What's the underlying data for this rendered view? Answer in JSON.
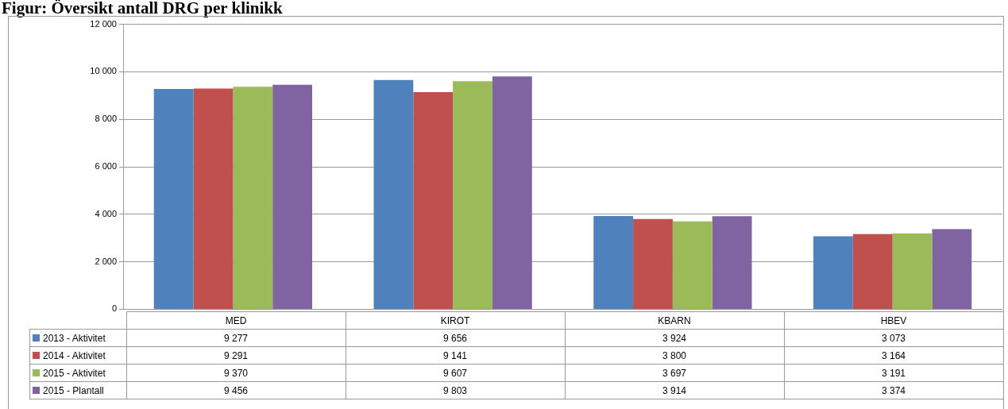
{
  "chart_data": {
    "type": "bar",
    "title": "Figur: Översikt antall DRG per klinikk",
    "categories": [
      "MED",
      "KIROT",
      "KBARN",
      "HBEV"
    ],
    "series": [
      {
        "name": "2013 - Aktivitet",
        "color": "#4f81bd",
        "values": [
          9277,
          9656,
          3924,
          3073
        ],
        "value_labels": [
          "9 277",
          "9 656",
          "3 924",
          "3 073"
        ]
      },
      {
        "name": "2014 - Aktivitet",
        "color": "#c0504d",
        "values": [
          9291,
          9141,
          3800,
          3164
        ],
        "value_labels": [
          "9 291",
          "9 141",
          "3 800",
          "3 164"
        ]
      },
      {
        "name": "2015 - Aktivitet",
        "color": "#9bbb59",
        "values": [
          9370,
          9607,
          3697,
          3191
        ],
        "value_labels": [
          "9 370",
          "9 607",
          "3 697",
          "3 191"
        ]
      },
      {
        "name": "2015 - Plantall",
        "color": "#8064a2",
        "values": [
          9456,
          9803,
          3914,
          3374
        ],
        "value_labels": [
          "9 456",
          "9 803",
          "3 914",
          "3 374"
        ]
      }
    ],
    "ylim": [
      0,
      12000
    ],
    "yticks": [
      {
        "value": 0,
        "label": "0"
      },
      {
        "value": 2000,
        "label": "2 000"
      },
      {
        "value": 4000,
        "label": "4 000"
      },
      {
        "value": 6000,
        "label": "6 000"
      },
      {
        "value": 8000,
        "label": "8 000"
      },
      {
        "value": 10000,
        "label": "10 000"
      },
      {
        "value": 12000,
        "label": "12 000"
      }
    ],
    "grid": "y",
    "legend": "bottom left"
  }
}
